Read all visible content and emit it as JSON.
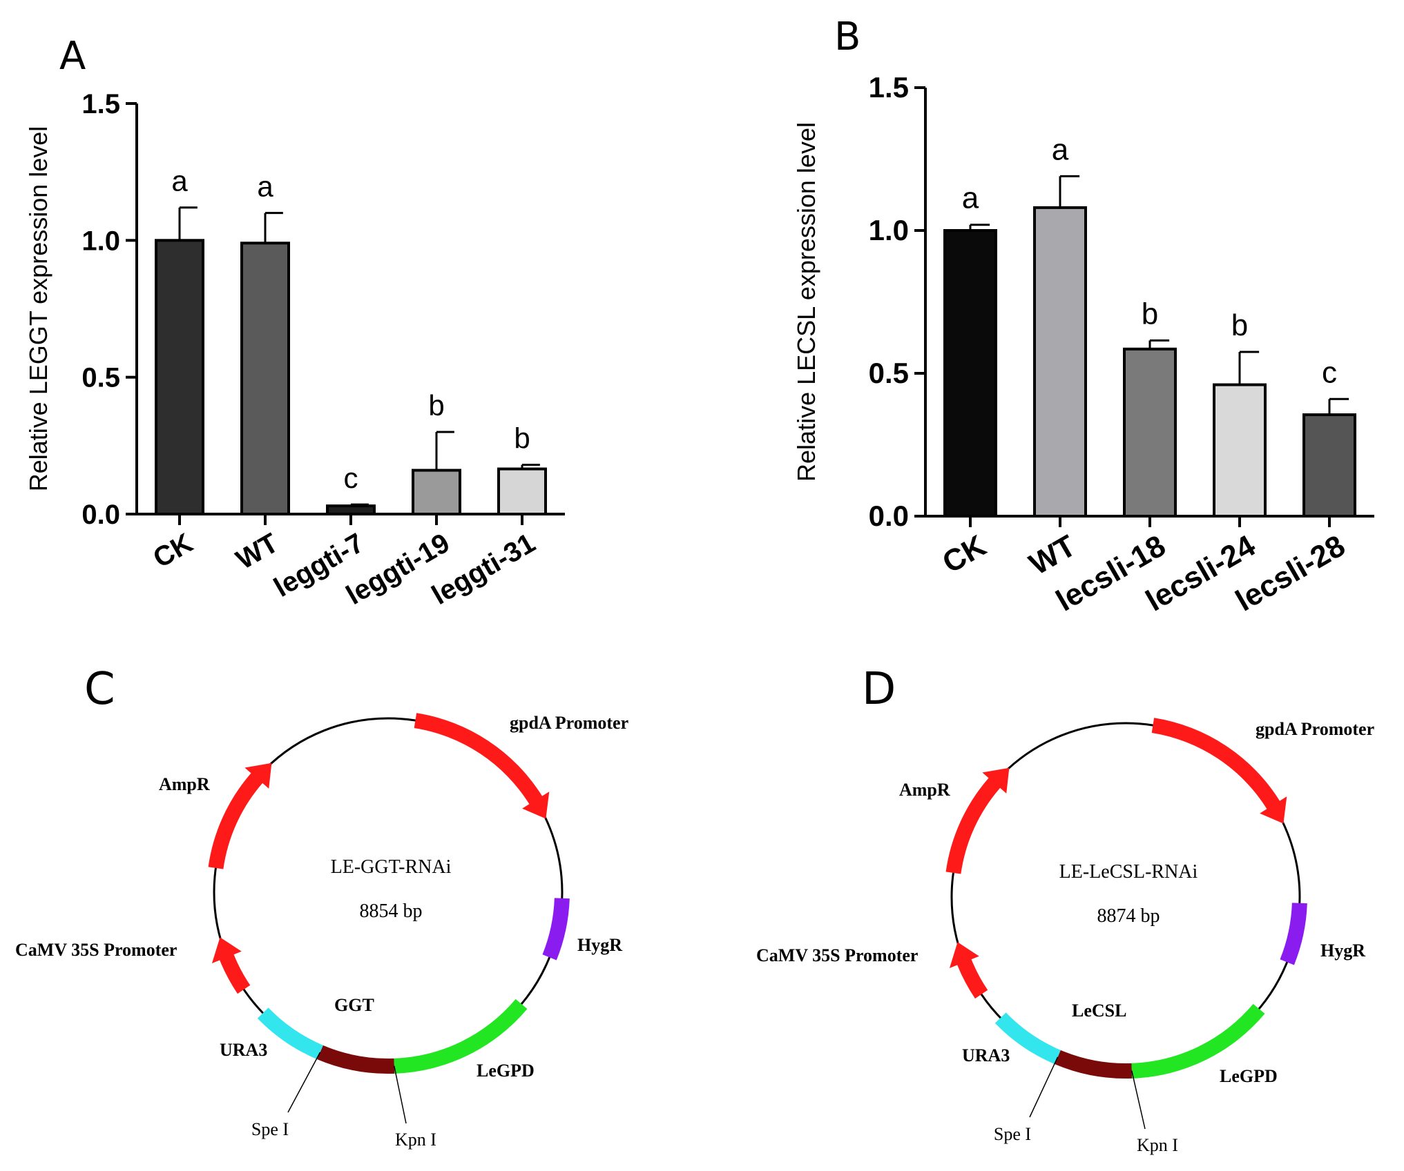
{
  "panels": {
    "a": "A",
    "b": "B",
    "c": "C",
    "d": "D"
  },
  "chart_data": [
    {
      "panel": "A",
      "type": "bar",
      "title": "",
      "xlabel": "",
      "ylabel": "Relative LEGGT expression level",
      "ylim": [
        0,
        1.5
      ],
      "yticks": [
        "0.0",
        "0.5",
        "1.0",
        "1.5"
      ],
      "ytick_values": [
        0,
        0.5,
        1.0,
        1.5
      ],
      "categories": [
        "CK",
        "WT",
        "leggti-7",
        "leggti-19",
        "leggti-31"
      ],
      "values": [
        1.0,
        0.99,
        0.03,
        0.16,
        0.165
      ],
      "errors": [
        0.12,
        0.11,
        0.005,
        0.14,
        0.015
      ],
      "significance": [
        "a",
        "a",
        "c",
        "b",
        "b"
      ],
      "bar_colors": [
        "#2e2e2e",
        "#5a5a5a",
        "#1e1e1e",
        "#9a9a9a",
        "#d6d6d6"
      ]
    },
    {
      "panel": "B",
      "type": "bar",
      "title": "",
      "xlabel": "",
      "ylabel": "Relative  LECSL expression level",
      "ylim": [
        0,
        1.5
      ],
      "yticks": [
        "0.0",
        "0.5",
        "1.0",
        "1.5"
      ],
      "ytick_values": [
        0,
        0.5,
        1.0,
        1.5
      ],
      "categories": [
        "CK",
        "WT",
        "lecsli-18",
        "lecsli-24",
        "lecsli-28"
      ],
      "values": [
        1.0,
        1.08,
        0.585,
        0.46,
        0.355
      ],
      "errors": [
        0.02,
        0.11,
        0.03,
        0.115,
        0.055
      ],
      "significance": [
        "a",
        "a",
        "b",
        "b",
        "c"
      ],
      "bar_colors": [
        "#0a0a0a",
        "#a8a8ad",
        "#7a7a7a",
        "#d9d9d9",
        "#555555"
      ]
    }
  ],
  "plasmid_maps": [
    {
      "panel": "C",
      "name": "LE-GGT-RNAi",
      "size": "8854 bp",
      "features": {
        "gpda": "gpdA Promoter",
        "ampr": "AmpR",
        "hygr": "HygR",
        "camv": "CaMV 35S Promoter",
        "insert": "GGT",
        "ura3": "URA3",
        "legpd": "LeGPD"
      },
      "sites": {
        "spe": "Spe I",
        "kpn": "Kpn I"
      }
    },
    {
      "panel": "D",
      "name": "LE-LeCSL-RNAi",
      "size": "8874 bp",
      "features": {
        "gpda": "gpdA Promoter",
        "ampr": "AmpR",
        "hygr": "HygR",
        "camv": "CaMV 35S Promoter",
        "insert": "LeCSL",
        "ura3": "URA3",
        "legpd": "LeGPD"
      },
      "sites": {
        "spe": "Spe I",
        "kpn": "Kpn I"
      }
    }
  ],
  "colors": {
    "promoter": "#ff1a1a",
    "hygr": "#8b1cf0",
    "legpd": "#22e622",
    "ura3": "#33e6ee",
    "insert": "#7a0a0a"
  }
}
